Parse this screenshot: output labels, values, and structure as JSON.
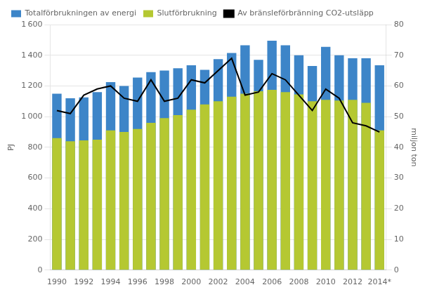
{
  "chart_data": {
    "type": "bar",
    "ylabel": "PJ",
    "y2label": "miljon ton",
    "categories": [
      "1990",
      null,
      "1992",
      null,
      "1994",
      null,
      "1996",
      null,
      "1998",
      null,
      "2000",
      null,
      "2002",
      null,
      "2004",
      null,
      "2006",
      null,
      "2008",
      null,
      "2010",
      null,
      "2012",
      null,
      "2014*"
    ],
    "series": [
      {
        "name": "Totalförbrukningen av energi",
        "type": "bar",
        "color": "#3d85c8",
        "values": [
          1150,
          1120,
          1125,
          1160,
          1225,
          1200,
          1255,
          1290,
          1300,
          1315,
          1335,
          1305,
          1375,
          1415,
          1465,
          1370,
          1495,
          1465,
          1400,
          1330,
          1455,
          1400,
          1380,
          1380,
          1335
        ]
      },
      {
        "name": "Slutförbrukning",
        "type": "bar",
        "color": "#b5c832",
        "values": [
          860,
          840,
          845,
          850,
          910,
          900,
          920,
          960,
          990,
          1010,
          1045,
          1080,
          1100,
          1130,
          1150,
          1165,
          1175,
          1160,
          1145,
          1100,
          1110,
          1105,
          1110,
          1090,
          910
        ]
      },
      {
        "name": "Av bränsleförbränning CO2-utsläpp",
        "type": "line",
        "axis": "y2",
        "color": "#000000",
        "values": [
          52,
          51,
          57,
          59,
          60,
          56,
          55,
          62,
          55,
          56,
          62,
          61,
          65,
          69,
          57,
          58,
          64,
          62,
          57,
          52,
          59,
          56,
          48,
          47,
          45
        ]
      }
    ],
    "ylim": [
      0,
      1600
    ],
    "yticks": [
      0,
      200,
      400,
      600,
      800,
      {
        "value": 1000,
        "label": "1 000"
      },
      {
        "value": 1200,
        "label": "1 200"
      },
      {
        "value": 1400,
        "label": "1 400"
      },
      {
        "value": 1600,
        "label": "1 600"
      }
    ],
    "y2lim": [
      0,
      80
    ],
    "y2ticks": [
      0,
      10,
      20,
      30,
      40,
      50,
      60,
      70,
      80
    ],
    "grid": true,
    "legend": "upper left"
  }
}
